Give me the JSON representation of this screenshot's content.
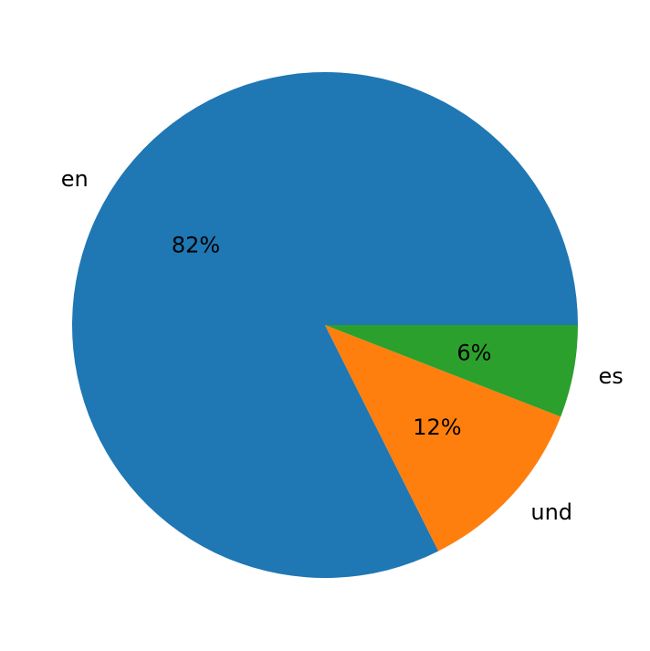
{
  "chart_data": {
    "type": "pie",
    "title": "",
    "categories": [
      "en",
      "und",
      "es"
    ],
    "values": [
      82.4,
      11.7,
      5.9
    ],
    "pct_labels": [
      "82%",
      "12%",
      "6%"
    ],
    "colors": [
      "#1f77b4",
      "#ff7f0e",
      "#2ca02c"
    ],
    "start_angle_deg": 0,
    "direction": "counterclockwise",
    "legend": "none"
  }
}
